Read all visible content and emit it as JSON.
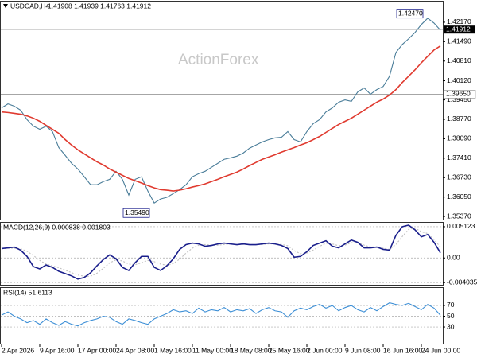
{
  "chart_data": [
    {
      "type": "line",
      "title": "USDCAD,H4",
      "subtitle": "1.41908 1.41939 1.41763 1.41912",
      "watermark": "ActionForex",
      "ylim": [
        1.3526,
        1.4292
      ],
      "yticks": [
        {
          "value": 1.4217,
          "label": "1.42170"
        },
        {
          "value": 1.4149,
          "label": "1.41490"
        },
        {
          "value": 1.4081,
          "label": "1.40810"
        },
        {
          "value": 1.4012,
          "label": "1.40120"
        },
        {
          "value": 1.3945,
          "label": "1.39450"
        },
        {
          "value": 1.3877,
          "label": "1.38770"
        },
        {
          "value": 1.3809,
          "label": "1.38090"
        },
        {
          "value": 1.3741,
          "label": "1.37410"
        },
        {
          "value": 1.3673,
          "label": "1.36730"
        },
        {
          "value": 1.3605,
          "label": "1.36050"
        },
        {
          "value": 1.3537,
          "label": "1.35370"
        }
      ],
      "series": [
        {
          "color": "#4a7d99",
          "values": [
            1.3917,
            1.3931,
            1.3923,
            1.3909,
            1.3876,
            1.3853,
            1.3842,
            1.3853,
            1.3834,
            1.3778,
            1.3751,
            1.3723,
            1.3703,
            1.3676,
            1.3648,
            1.3648,
            1.3659,
            1.3667,
            1.3695,
            1.3667,
            1.3612,
            1.3667,
            1.3676,
            1.3626,
            1.3584,
            1.3598,
            1.3604,
            1.3617,
            1.3631,
            1.3648,
            1.3676,
            1.3687,
            1.3695,
            1.3709,
            1.3723,
            1.3737,
            1.3742,
            1.3748,
            1.3759,
            1.3776,
            1.3787,
            1.3798,
            1.3806,
            1.3812,
            1.3814,
            1.3834,
            1.3806,
            1.3798,
            1.3834,
            1.3862,
            1.3876,
            1.3903,
            1.3917,
            1.3937,
            1.3945,
            1.394,
            1.3973,
            1.3987,
            1.3965,
            1.3981,
            1.3992,
            1.4028,
            1.4111,
            1.4139,
            1.4159,
            1.4181,
            1.4209,
            1.4231,
            1.4214,
            1.4189
          ]
        },
        {
          "color": "#e03a2f",
          "values": [
            1.3903,
            1.3901,
            1.3898,
            1.3895,
            1.3889,
            1.3881,
            1.387,
            1.3856,
            1.3842,
            1.3828,
            1.3806,
            1.3787,
            1.377,
            1.3756,
            1.3742,
            1.3728,
            1.3717,
            1.3703,
            1.3692,
            1.3681,
            1.367,
            1.3662,
            1.3654,
            1.3645,
            1.3637,
            1.3631,
            1.3629,
            1.3626,
            1.3629,
            1.3634,
            1.364,
            1.3645,
            1.3651,
            1.3659,
            1.3667,
            1.3676,
            1.3684,
            1.3692,
            1.3703,
            1.3715,
            1.3726,
            1.3737,
            1.3745,
            1.3753,
            1.3762,
            1.377,
            1.3778,
            1.3787,
            1.3795,
            1.3806,
            1.3817,
            1.3831,
            1.3845,
            1.3859,
            1.387,
            1.3881,
            1.3895,
            1.3909,
            1.3923,
            1.3937,
            1.3948,
            1.3962,
            1.3981,
            1.4006,
            1.4028,
            1.405,
            1.4075,
            1.4098,
            1.412,
            1.4134
          ]
        }
      ],
      "annotations": [
        {
          "x": 67,
          "value": 1.4247,
          "label": "1.42470"
        },
        {
          "x": 24,
          "value": 1.3549,
          "label": "1.35490"
        }
      ],
      "hlines": [
        {
          "value": 1.3965,
          "label": "1.39650"
        }
      ],
      "last_price": {
        "value": 1.41912,
        "label": "1.41912"
      }
    },
    {
      "type": "line",
      "title": "MACD(12,26,9) 0.000838 0.001803",
      "ylim": [
        -0.0044,
        0.0059
      ],
      "grid": true,
      "yticks": [
        0.005123,
        {
          "value": 0,
          "label": "0.00"
        },
        -0.004035
      ],
      "series": [
        {
          "color": "#c0c0c0",
          "dash": true,
          "values": [
            0.0015,
            0.0016,
            0.0016,
            0.0015,
            0.0011,
            0.0004,
            -0.0004,
            -0.001,
            -0.0013,
            -0.0016,
            -0.002,
            -0.0024,
            -0.0028,
            -0.003,
            -0.003,
            -0.0025,
            -0.0017,
            -0.0008,
            -0.0003,
            -0.0005,
            -0.001,
            -0.0011,
            -0.0008,
            -0.0004,
            -0.0006,
            -0.001,
            -0.0012,
            -0.0009,
            -0.0002,
            0.0008,
            0.0016,
            0.0021,
            0.0022,
            0.0021,
            0.0021,
            0.0022,
            0.0023,
            0.0022,
            0.0022,
            0.0022,
            0.0022,
            0.0022,
            0.0023,
            0.0023,
            0.0022,
            0.002,
            0.0012,
            0.0007,
            0.0008,
            0.0013,
            0.0019,
            0.0024,
            0.0023,
            0.002,
            0.0021,
            0.0025,
            0.0025,
            0.0021,
            0.0018,
            0.0018,
            0.0016,
            0.0014,
            0.0022,
            0.0035,
            0.0047,
            0.0049,
            0.0043,
            0.004,
            0.003,
            0.0018
          ]
        },
        {
          "color": "#1a1f8c",
          "values": [
            0.00154,
            0.00166,
            0.00179,
            0.00128,
            0.00026,
            -0.00141,
            -0.00179,
            -0.00115,
            -0.00154,
            -0.00218,
            -0.00256,
            -0.00294,
            -0.00346,
            -0.0032,
            -0.00243,
            -0.00128,
            -0.00026,
            0.00051,
            -0.00013,
            -0.00154,
            -0.00205,
            -0.00077,
            0.00026,
            0.00026,
            -0.00154,
            -0.00205,
            -0.00128,
            -0.00013,
            0.00141,
            0.00218,
            0.00243,
            0.0023,
            0.00192,
            0.00205,
            0.0023,
            0.00243,
            0.0023,
            0.00218,
            0.0023,
            0.00218,
            0.00218,
            0.0023,
            0.00243,
            0.0023,
            0.00205,
            0.00154,
            0.00013,
            0.00026,
            0.00102,
            0.00205,
            0.00243,
            0.00282,
            0.00192,
            0.00166,
            0.0023,
            0.00294,
            0.00256,
            0.00166,
            0.00166,
            0.00179,
            0.00141,
            0.00128,
            0.00371,
            0.00512,
            0.00538,
            0.00461,
            0.00346,
            0.00384,
            0.00256,
            0.000838
          ]
        }
      ]
    },
    {
      "type": "line",
      "title": "RSI(14) 51.6113",
      "ylim": [
        -1,
        104
      ],
      "grid": true,
      "yticks": [
        70,
        50,
        30
      ],
      "series": [
        {
          "color": "#3d8fd6",
          "values": [
            52,
            58,
            50,
            45,
            38,
            42,
            35,
            45,
            38,
            33,
            40,
            35,
            32,
            38,
            42,
            45,
            50,
            48,
            40,
            35,
            45,
            42,
            38,
            35,
            45,
            50,
            55,
            62,
            58,
            60,
            55,
            65,
            58,
            62,
            60,
            66,
            58,
            62,
            60,
            64,
            55,
            62,
            66,
            60,
            58,
            48,
            60,
            65,
            62,
            68,
            72,
            65,
            70,
            60,
            66,
            70,
            62,
            58,
            66,
            60,
            68,
            75,
            72,
            70,
            74,
            68,
            62,
            72,
            65,
            51.6113
          ]
        }
      ],
      "xticks": [
        {
          "value": 0,
          "label": "2 Apr 2026"
        },
        {
          "value": 6,
          "label": "9 Apr 16:00"
        },
        {
          "value": 12,
          "label": "17 Apr 00:00"
        },
        {
          "value": 18,
          "label": "24 Apr 08:00"
        },
        {
          "value": 24,
          "label": "1 May 16:00"
        },
        {
          "value": 30,
          "label": "11 May 00:00"
        },
        {
          "value": 36,
          "label": "18 May 08:00"
        },
        {
          "value": 42,
          "label": "25 May 16:00"
        },
        {
          "value": 48,
          "label": "2 Jun 00:00"
        },
        {
          "value": 54,
          "label": "9 Jun 08:00"
        },
        {
          "value": 60,
          "label": "16 Jun 16:00"
        },
        {
          "value": 66,
          "label": "24 Jun 00:00"
        }
      ]
    }
  ]
}
